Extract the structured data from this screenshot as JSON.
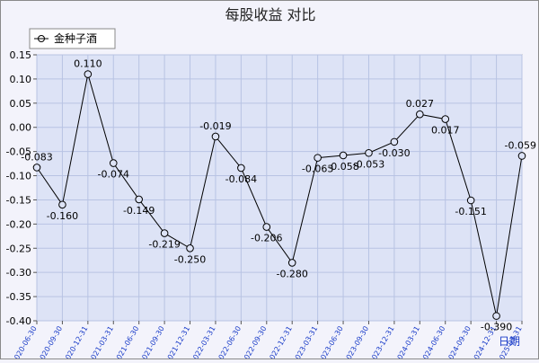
{
  "chart_data": {
    "type": "line",
    "title": "每股收益  对比",
    "xlabel": "日期",
    "ylabel": "",
    "ylim": [
      -0.4,
      0.15
    ],
    "yticks": [
      "0.15",
      "0.10",
      "0.05",
      "0.00",
      "-0.05",
      "-0.10",
      "-0.15",
      "-0.20",
      "-0.25",
      "-0.30",
      "-0.35",
      "-0.40"
    ],
    "legend": "top-left",
    "grid": true,
    "colors": {
      "plot_bg": "#dde3f6",
      "line": "#000000",
      "grid": "#b8c3e3"
    },
    "categories": [
      "2020-06-30",
      "2020-09-30",
      "2020-12-31",
      "2021-03-31",
      "2021-06-30",
      "2021-09-30",
      "2021-12-31",
      "2022-03-31",
      "2022-06-30",
      "2022-09-30",
      "2022-12-31",
      "2023-03-31",
      "2023-06-30",
      "2023-09-30",
      "2023-12-31",
      "2024-03-31",
      "2024-06-30",
      "2024-09-30",
      "2024-12-31",
      "2025-03-31"
    ],
    "series": [
      {
        "name": "金种子酒",
        "values": [
          -0.083,
          -0.16,
          0.11,
          -0.074,
          -0.149,
          -0.219,
          -0.25,
          -0.019,
          -0.084,
          -0.206,
          -0.28,
          -0.063,
          -0.058,
          -0.053,
          -0.03,
          0.027,
          0.017,
          -0.151,
          -0.39,
          -0.059
        ],
        "labels": [
          "-0.083",
          "-0.160",
          "0.110",
          "-0.074",
          "-0.149",
          "-0.219",
          "-0.250",
          "-0.019",
          "-0.084",
          "-0.206",
          "-0.280",
          "-0.063",
          "-0.058",
          "-0.053",
          "-0.030",
          "0.027",
          "0.017",
          "-0.151",
          "-0.390",
          "-0.059"
        ]
      }
    ]
  }
}
